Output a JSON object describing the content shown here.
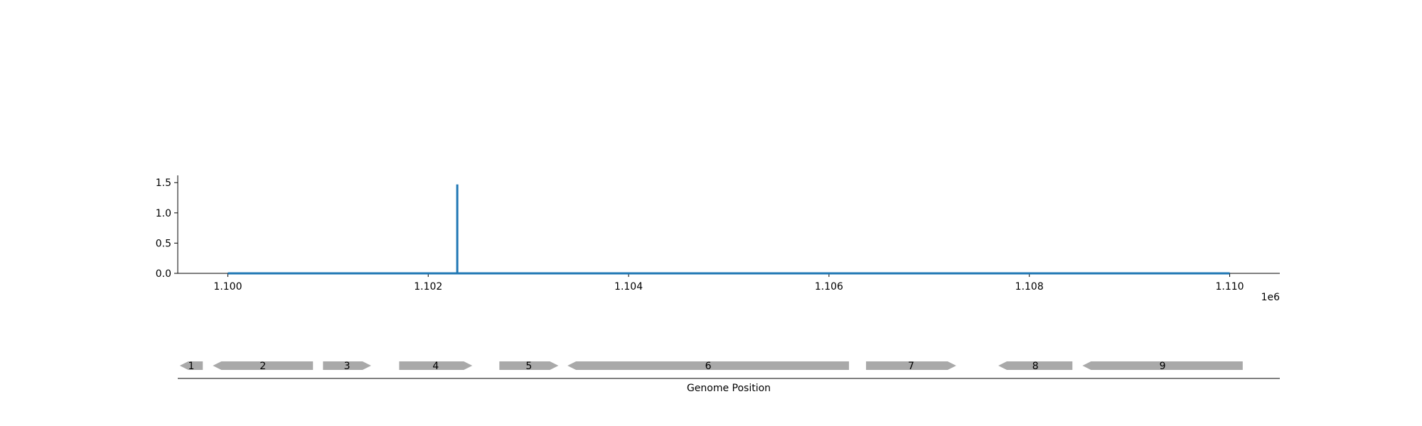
{
  "chart_data": [
    {
      "type": "line",
      "x_range": [
        1099500,
        1110500
      ],
      "ylim": [
        0,
        1.62
      ],
      "x_ticks": [
        1100000,
        1102000,
        1104000,
        1106000,
        1108000,
        1110000
      ],
      "x_tick_labels": [
        "1.100",
        "1.102",
        "1.104",
        "1.106",
        "1.108",
        "1.110"
      ],
      "x_offset_label": "1e6",
      "y_ticks": [
        0.0,
        0.5,
        1.0,
        1.5
      ],
      "y_tick_labels": [
        "0.0",
        "0.5",
        "1.0",
        "1.5"
      ],
      "line_color": "#1f77b4",
      "grid": false,
      "series": [
        {
          "x": [
            1100000,
            1102290,
            1102290,
            1102290,
            1102290,
            1110000
          ],
          "y": [
            0,
            0,
            1.47,
            1.47,
            0,
            0
          ]
        }
      ]
    },
    {
      "type": "gene_track",
      "xlabel": "Genome Position",
      "x_range": [
        1099500,
        1110500
      ],
      "feature_color": "#a9a9a9",
      "features": [
        {
          "label": "1",
          "start": 1099520,
          "end": 1099750,
          "strand": -1
        },
        {
          "label": "2",
          "start": 1099850,
          "end": 1100850,
          "strand": -1
        },
        {
          "label": "3",
          "start": 1100950,
          "end": 1101430,
          "strand": 1
        },
        {
          "label": "4",
          "start": 1101710,
          "end": 1102440,
          "strand": 1
        },
        {
          "label": "5",
          "start": 1102710,
          "end": 1103300,
          "strand": 1
        },
        {
          "label": "6",
          "start": 1103390,
          "end": 1106200,
          "strand": -1
        },
        {
          "label": "7",
          "start": 1106370,
          "end": 1107270,
          "strand": 1
        },
        {
          "label": "8",
          "start": 1107690,
          "end": 1108430,
          "strand": -1
        },
        {
          "label": "9",
          "start": 1108530,
          "end": 1110130,
          "strand": -1
        }
      ]
    }
  ]
}
